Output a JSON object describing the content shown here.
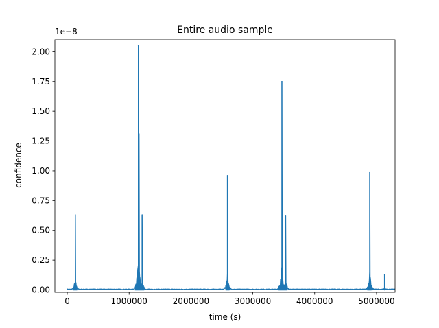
{
  "chart_data": {
    "type": "line",
    "title": "Entire audio sample",
    "xlabel": "time (s)",
    "ylabel": "confidence",
    "y_offset_label": "1e−8",
    "xlim": [
      -200000,
      5300000
    ],
    "ylim": [
      -0.02,
      2.1
    ],
    "y_scale_multiplier": 1e-08,
    "x_ticks": [
      0,
      1000000,
      2000000,
      3000000,
      4000000,
      5000000
    ],
    "x_tick_labels": [
      "0",
      "1000000",
      "2000000",
      "3000000",
      "4000000",
      "5000000"
    ],
    "y_ticks": [
      0.0,
      0.25,
      0.5,
      0.75,
      1.0,
      1.25,
      1.5,
      1.75,
      2.0
    ],
    "y_tick_labels": [
      "0.00",
      "0.25",
      "0.50",
      "0.75",
      "1.00",
      "1.25",
      "1.50",
      "1.75",
      "2.00"
    ],
    "grid": false,
    "series": [
      {
        "color": "#1f77b4",
        "baseline": 0.005,
        "x_max": 5300000,
        "peaks": [
          {
            "x": 130000,
            "y": 0.63
          },
          {
            "x": 1150000,
            "y": 2.05
          },
          {
            "x": 1160000,
            "y": 1.31
          },
          {
            "x": 1210000,
            "y": 0.63
          },
          {
            "x": 2590000,
            "y": 0.96
          },
          {
            "x": 3470000,
            "y": 1.75
          },
          {
            "x": 3530000,
            "y": 0.62
          },
          {
            "x": 4890000,
            "y": 0.99
          },
          {
            "x": 5130000,
            "y": 0.13
          }
        ]
      }
    ]
  }
}
